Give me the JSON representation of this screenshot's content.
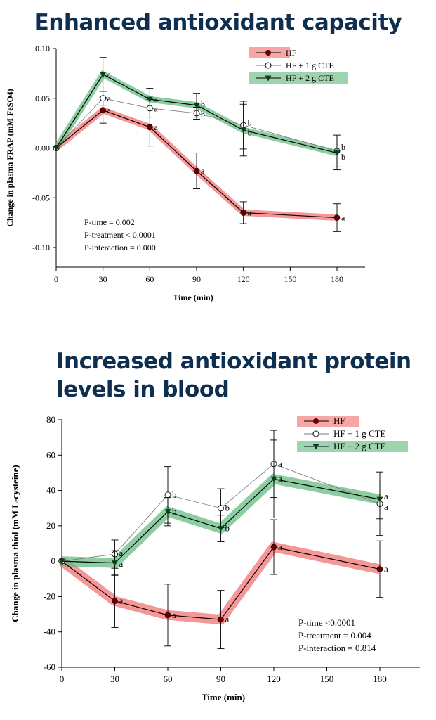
{
  "titles": [
    "Enhanced antioxidant capacity",
    "Increased antioxidant protein levels in blood"
  ],
  "colors": {
    "title": "#0e2f4f",
    "hf_band": "#f26b6b",
    "cte2_band": "#5cb87a",
    "hf_marker": "#6b0000",
    "cte2_marker": "#0b3d1a"
  },
  "chart_data": [
    {
      "type": "line",
      "title": "Enhanced antioxidant capacity",
      "xlabel": "Time (min)",
      "ylabel": "Change in plasma FRAP (mM FeSO4)",
      "x": [
        0,
        30,
        60,
        90,
        120,
        180
      ],
      "xticks": [
        "0",
        "30",
        "60",
        "90",
        "120",
        "150",
        "180"
      ],
      "xlim": [
        0,
        200
      ],
      "yticks": [
        "0.10",
        "0.05",
        "0.00",
        "-0.05",
        "-0.10"
      ],
      "ylim": [
        -0.12,
        0.1
      ],
      "legend_position": "top-right",
      "series": [
        {
          "name": "HF",
          "values": [
            0,
            0.038,
            0.021,
            -0.023,
            -0.065,
            -0.07
          ],
          "errors": [
            0,
            0.013,
            0.019,
            0.018,
            0.011,
            0.014
          ],
          "letters": [
            "",
            "a",
            "a",
            "a",
            "a",
            "a"
          ]
        },
        {
          "name": "HF + 1 g CTE",
          "values": [
            0,
            0.05,
            0.04,
            0.035,
            0.023,
            -0.003
          ],
          "errors": [
            0,
            0.007,
            0.009,
            0.006,
            0.024,
            0.016
          ],
          "letters": [
            "",
            "a",
            "a",
            "b",
            "b",
            "b"
          ]
        },
        {
          "name": "HF + 2 g CTE",
          "values": [
            0,
            0.074,
            0.049,
            0.043,
            0.018,
            -0.005
          ],
          "errors": [
            0,
            0.017,
            0.011,
            0.012,
            0.026,
            0.017
          ],
          "letters": [
            "",
            "a",
            "a",
            "b",
            "b",
            "b"
          ]
        }
      ],
      "annotations": [
        "P-time = 0.002",
        "P-treatment < 0.0001",
        "P-interaction = 0.000"
      ]
    },
    {
      "type": "line",
      "title": "Increased antioxidant protein levels in blood",
      "xlabel": "Time (min)",
      "ylabel": "Change in plasma thiol (mM L-cysteine)",
      "x": [
        0,
        30,
        60,
        90,
        120,
        180
      ],
      "xticks": [
        "0",
        "30",
        "60",
        "90",
        "120",
        "150",
        "180"
      ],
      "xlim": [
        0,
        200
      ],
      "yticks": [
        "80",
        "60",
        "40",
        "20",
        "0",
        "-20",
        "-40",
        "-60"
      ],
      "ylim": [
        -60,
        80
      ],
      "legend_position": "top-right",
      "series": [
        {
          "name": "HF",
          "values": [
            0,
            -22.5,
            -30.5,
            -33,
            8,
            -4.5
          ],
          "errors": [
            0,
            15,
            17.5,
            16.5,
            15.5,
            16
          ],
          "letters": [
            "",
            "a",
            "a",
            "a",
            "a",
            "a"
          ]
        },
        {
          "name": "HF + 1 g CTE",
          "values": [
            0,
            4,
            37.5,
            30,
            55,
            32.5
          ],
          "errors": [
            0,
            8,
            16,
            11,
            19,
            18
          ],
          "letters": [
            "",
            "a",
            "b",
            "b",
            "a",
            "a"
          ]
        },
        {
          "name": "HF + 2 g CTE",
          "values": [
            0,
            -1,
            28,
            18.5,
            46.5,
            35
          ],
          "errors": [
            0,
            7,
            8,
            7.5,
            22,
            11
          ],
          "letters": [
            "",
            "a",
            "b",
            "b",
            "a",
            "a"
          ]
        }
      ],
      "annotations": [
        "P-time <0.0001",
        "P-treatment = 0.004",
        "P-interaction = 0.814"
      ]
    }
  ]
}
